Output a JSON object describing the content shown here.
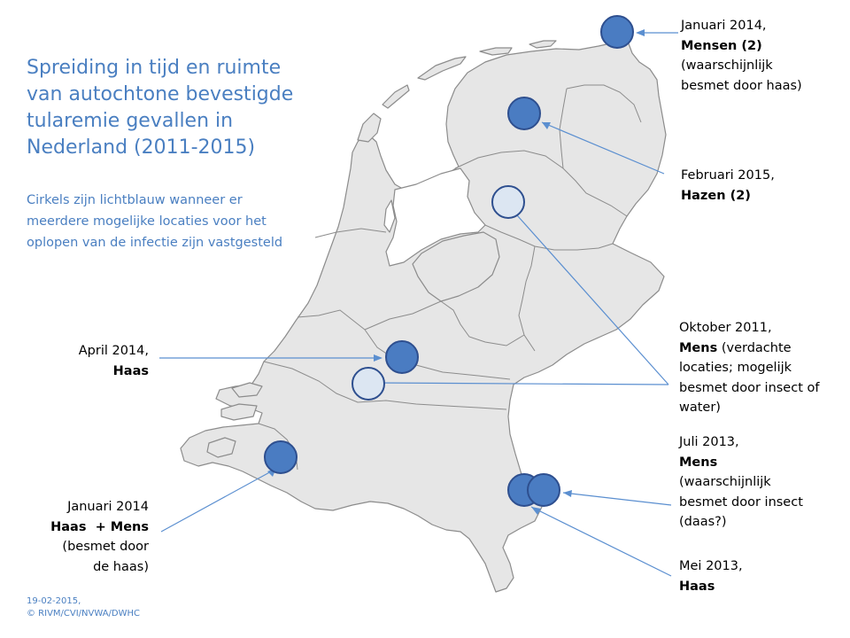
{
  "title": "Spreiding in tijd en ruimte van autochtone bevestigde tularemie gevallen in Nederland (2011-2015)",
  "subtitle": "Cirkels zijn lichtblauw wanneer er meerdere mogelijke locaties voor het oplopen van de infectie zijn vastgesteld",
  "colors": {
    "land": "#e6e6e6",
    "border": "#8c8c8c",
    "case_confirmed": "#4a7cc2",
    "case_multiple_locations": "#dce6f2",
    "circle_stroke": "#2e4f8f",
    "leader_line": "#5b8fd0",
    "title": "#4a7fc1"
  },
  "annotations": {
    "jan2014_north": {
      "date": "Januari 2014,",
      "subject": "Mensen (2)",
      "detail1": "(waarschijnlijk",
      "detail2": "besmet door haas)"
    },
    "feb2015": {
      "date": "Februari 2015,",
      "subject": "Hazen (2)"
    },
    "okt2011": {
      "date": "Oktober 2011,",
      "subject": "Mens",
      "detail1": " (verdachte",
      "detail2": "locaties; mogelijk",
      "detail3": "besmet door insect of",
      "detail4": "water)"
    },
    "jul2013": {
      "date": "Juli 2013,",
      "subject": "Mens",
      "detail1": "(waarschijnlijk",
      "detail2": "besmet door insect",
      "detail3": "(daas?)"
    },
    "mei2013": {
      "date": "Mei 2013,",
      "subject": "Haas"
    },
    "apr2014": {
      "date": "April 2014,",
      "subject": "Haas"
    },
    "jan2014_south": {
      "date": "Januari 2014",
      "subject": "Haas  + Mens",
      "detail1": "(besmet door",
      "detail2": "de haas)"
    }
  },
  "footer": {
    "date": "19-02-2015,",
    "credit": "© RIVM/CVI/NVWA/DWHC"
  }
}
